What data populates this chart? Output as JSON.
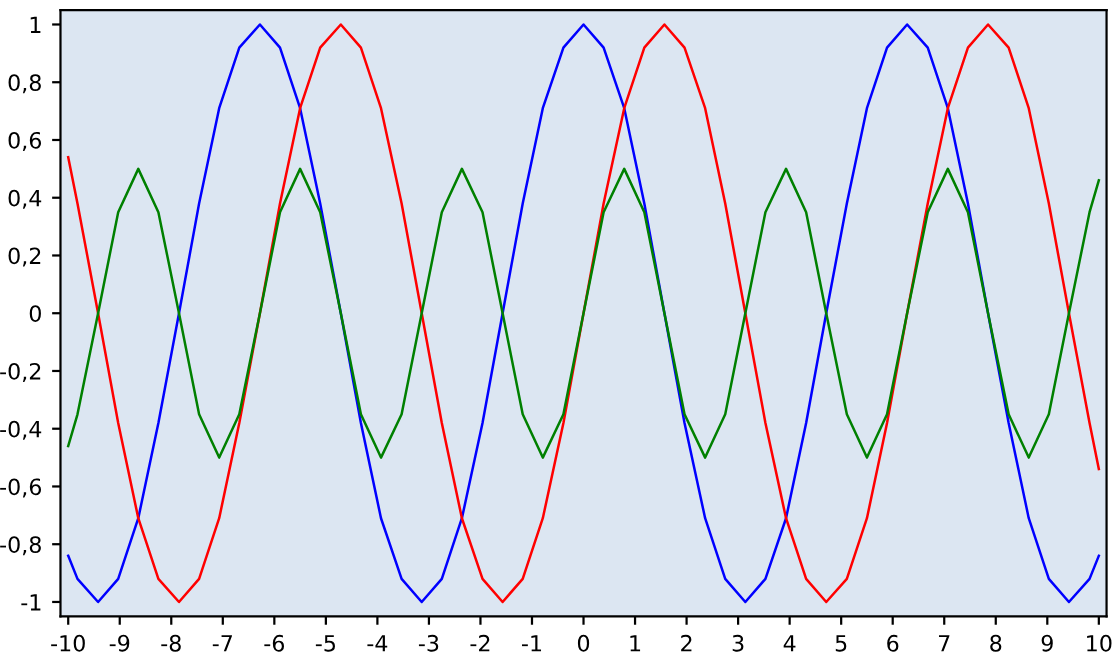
{
  "chart_data": {
    "type": "line",
    "xlim": [
      -10.15,
      10.15
    ],
    "ylim": [
      -1.05,
      1.05
    ],
    "xticks": [
      -10,
      -9,
      -8,
      -7,
      -6,
      -5,
      -4,
      -3,
      -2,
      -1,
      0,
      1,
      2,
      3,
      4,
      5,
      6,
      7,
      8,
      9,
      10
    ],
    "yticks": [
      {
        "value": -1,
        "label": "-1"
      },
      {
        "value": -0.8,
        "label": "-0,8"
      },
      {
        "value": -0.6,
        "label": "-0,6"
      },
      {
        "value": -0.4,
        "label": "-0,4"
      },
      {
        "value": -0.2,
        "label": "-0,2"
      },
      {
        "value": 0,
        "label": "0"
      },
      {
        "value": 0.2,
        "label": "0,2"
      },
      {
        "value": 0.4,
        "label": "0,4"
      },
      {
        "value": 0.6,
        "label": "0,6"
      },
      {
        "value": 0.8,
        "label": "0,8"
      },
      {
        "value": 1,
        "label": "1"
      }
    ],
    "x": [
      -10,
      -9.82,
      -9.42,
      -9.03,
      -8.64,
      -8.25,
      -7.85,
      -7.46,
      -7.07,
      -6.68,
      -6.28,
      -5.89,
      -5.5,
      -5.11,
      -4.71,
      -4.32,
      -3.93,
      -3.53,
      -3.14,
      -2.75,
      -2.36,
      -1.96,
      -1.57,
      -1.18,
      -0.79,
      -0.39,
      0,
      0.39,
      0.79,
      1.18,
      1.57,
      1.96,
      2.36,
      2.75,
      3.14,
      3.53,
      3.93,
      4.32,
      4.71,
      5.11,
      5.5,
      5.89,
      6.28,
      6.68,
      7.07,
      7.46,
      7.85,
      8.25,
      8.64,
      9.03,
      9.42,
      9.82,
      10
    ],
    "grid": false,
    "marker": "none",
    "line_style": "solid",
    "series": [
      {
        "color": "#0000ff",
        "values": [
          -0.84,
          -0.92,
          -1,
          -0.92,
          -0.71,
          -0.38,
          0,
          0.38,
          0.71,
          0.92,
          1,
          0.92,
          0.71,
          0.38,
          0,
          -0.38,
          -0.71,
          -0.92,
          -1,
          -0.92,
          -0.71,
          -0.38,
          0,
          0.38,
          0.71,
          0.92,
          1,
          0.92,
          0.71,
          0.38,
          0,
          -0.38,
          -0.71,
          -0.92,
          -1,
          -0.92,
          -0.71,
          -0.38,
          0,
          0.38,
          0.71,
          0.92,
          1,
          0.92,
          0.71,
          0.38,
          0,
          -0.38,
          -0.71,
          -0.92,
          -1,
          -0.92,
          -0.84
        ]
      },
      {
        "color": "#ff0000",
        "values": [
          0.54,
          0.38,
          0,
          -0.38,
          -0.71,
          -0.92,
          -1,
          -0.92,
          -0.71,
          -0.38,
          0,
          0.38,
          0.71,
          0.92,
          1,
          0.92,
          0.71,
          0.38,
          0,
          -0.38,
          -0.71,
          -0.92,
          -1,
          -0.92,
          -0.71,
          -0.38,
          0,
          0.38,
          0.71,
          0.92,
          1,
          0.92,
          0.71,
          0.38,
          0,
          -0.38,
          -0.71,
          -0.92,
          -1,
          -0.92,
          -0.71,
          -0.38,
          0,
          0.38,
          0.71,
          0.92,
          1,
          0.92,
          0.71,
          0.38,
          0,
          -0.38,
          -0.54
        ]
      },
      {
        "color": "#008000",
        "values": [
          -0.46,
          -0.35,
          0,
          0.35,
          0.5,
          0.35,
          0,
          -0.35,
          -0.5,
          -0.35,
          0,
          0.35,
          0.5,
          0.35,
          0,
          -0.35,
          -0.5,
          -0.35,
          0,
          0.35,
          0.5,
          0.35,
          0,
          -0.35,
          -0.5,
          -0.35,
          0,
          0.35,
          0.5,
          0.35,
          0,
          -0.35,
          -0.5,
          -0.35,
          0,
          0.35,
          0.5,
          0.35,
          0,
          -0.35,
          -0.5,
          -0.35,
          0,
          0.35,
          0.5,
          0.35,
          0,
          -0.35,
          -0.5,
          -0.35,
          0,
          0.35,
          0.46
        ]
      }
    ]
  }
}
